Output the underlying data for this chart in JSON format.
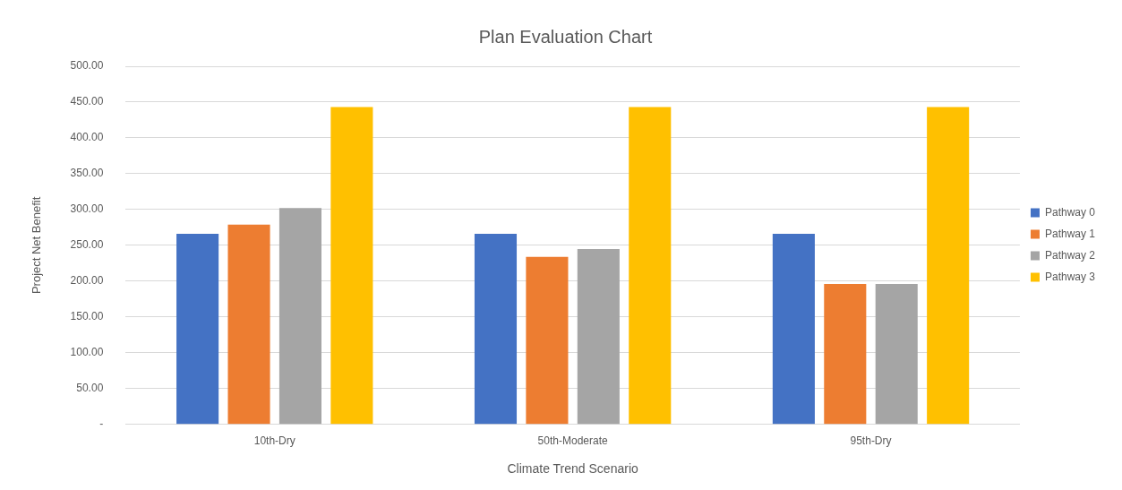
{
  "chart_data": {
    "type": "bar",
    "title": "Plan Evaluation Chart",
    "xlabel": "Climate Trend Scenario",
    "ylabel": "Project Net Benefit",
    "categories": [
      "10th-Dry",
      "50th-Moderate",
      "95th-Dry"
    ],
    "series": [
      {
        "name": "Pathway 0",
        "color": "#4472c4",
        "values": [
          266,
          266,
          266
        ]
      },
      {
        "name": "Pathway 1",
        "color": "#ed7d31",
        "values": [
          279,
          234,
          196
        ]
      },
      {
        "name": "Pathway 2",
        "color": "#a5a5a5",
        "values": [
          302,
          245,
          196
        ]
      },
      {
        "name": "Pathway 3",
        "color": "#ffc000",
        "values": [
          443,
          443,
          443
        ]
      }
    ],
    "ylim": [
      0,
      500
    ],
    "yticks": [
      {
        "value": 0,
        "label": "-"
      },
      {
        "value": 50,
        "label": "50.00"
      },
      {
        "value": 100,
        "label": "100.00"
      },
      {
        "value": 150,
        "label": "150.00"
      },
      {
        "value": 200,
        "label": "200.00"
      },
      {
        "value": 250,
        "label": "250.00"
      },
      {
        "value": 300,
        "label": "300.00"
      },
      {
        "value": 350,
        "label": "350.00"
      },
      {
        "value": 400,
        "label": "400.00"
      },
      {
        "value": 450,
        "label": "450.00"
      },
      {
        "value": 500,
        "label": "500.00"
      }
    ],
    "grid": "y",
    "legend": "right"
  }
}
